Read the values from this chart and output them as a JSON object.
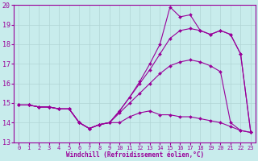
{
  "xlabel": "Windchill (Refroidissement éolien,°C)",
  "xlim": [
    -0.5,
    23.5
  ],
  "ylim": [
    13,
    20
  ],
  "yticks": [
    13,
    14,
    15,
    16,
    17,
    18,
    19,
    20
  ],
  "xticks": [
    0,
    1,
    2,
    3,
    4,
    5,
    6,
    7,
    8,
    9,
    10,
    11,
    12,
    13,
    14,
    15,
    16,
    17,
    18,
    19,
    20,
    21,
    22,
    23
  ],
  "bg_color": "#c8ecec",
  "line_color": "#990099",
  "grid_color": "#b0d4d4",
  "lines": [
    {
      "x": [
        0,
        1,
        2,
        3,
        4,
        5,
        6,
        7,
        8,
        9,
        10,
        11,
        12,
        13,
        14,
        15,
        16,
        17,
        18,
        19,
        20,
        21,
        22,
        23
      ],
      "y": [
        14.9,
        14.9,
        14.8,
        14.8,
        14.7,
        14.7,
        14.0,
        13.7,
        13.9,
        14.0,
        14.0,
        14.3,
        14.5,
        14.6,
        14.4,
        14.4,
        14.3,
        14.3,
        14.2,
        14.1,
        14.0,
        13.8,
        13.6,
        13.5
      ]
    },
    {
      "x": [
        0,
        1,
        2,
        3,
        4,
        5,
        6,
        7,
        8,
        9,
        10,
        11,
        12,
        13,
        14,
        15,
        16,
        17,
        18,
        19,
        20,
        21,
        22,
        23
      ],
      "y": [
        14.9,
        14.9,
        14.8,
        14.8,
        14.7,
        14.7,
        14.0,
        13.7,
        13.9,
        14.0,
        14.5,
        15.0,
        15.5,
        16.0,
        16.5,
        16.9,
        17.1,
        17.2,
        17.1,
        16.9,
        16.6,
        14.0,
        13.6,
        13.5
      ]
    },
    {
      "x": [
        0,
        1,
        2,
        3,
        4,
        5,
        6,
        7,
        8,
        9,
        10,
        11,
        12,
        13,
        14,
        15,
        16,
        17,
        18,
        19,
        20,
        21,
        22,
        23
      ],
      "y": [
        14.9,
        14.9,
        14.8,
        14.8,
        14.7,
        14.7,
        14.0,
        13.7,
        13.9,
        14.0,
        14.6,
        15.3,
        16.0,
        16.7,
        17.5,
        18.3,
        18.7,
        18.8,
        18.7,
        18.5,
        18.7,
        18.5,
        17.5,
        13.5
      ]
    },
    {
      "x": [
        0,
        1,
        2,
        3,
        4,
        5,
        6,
        7,
        8,
        9,
        10,
        11,
        12,
        13,
        14,
        15,
        16,
        17,
        18,
        19,
        20,
        21,
        22,
        23
      ],
      "y": [
        14.9,
        14.9,
        14.8,
        14.8,
        14.7,
        14.7,
        14.0,
        13.7,
        13.9,
        14.0,
        14.6,
        15.3,
        16.1,
        17.0,
        18.0,
        19.9,
        19.4,
        19.5,
        18.7,
        18.5,
        18.7,
        18.5,
        17.5,
        13.5
      ]
    }
  ]
}
